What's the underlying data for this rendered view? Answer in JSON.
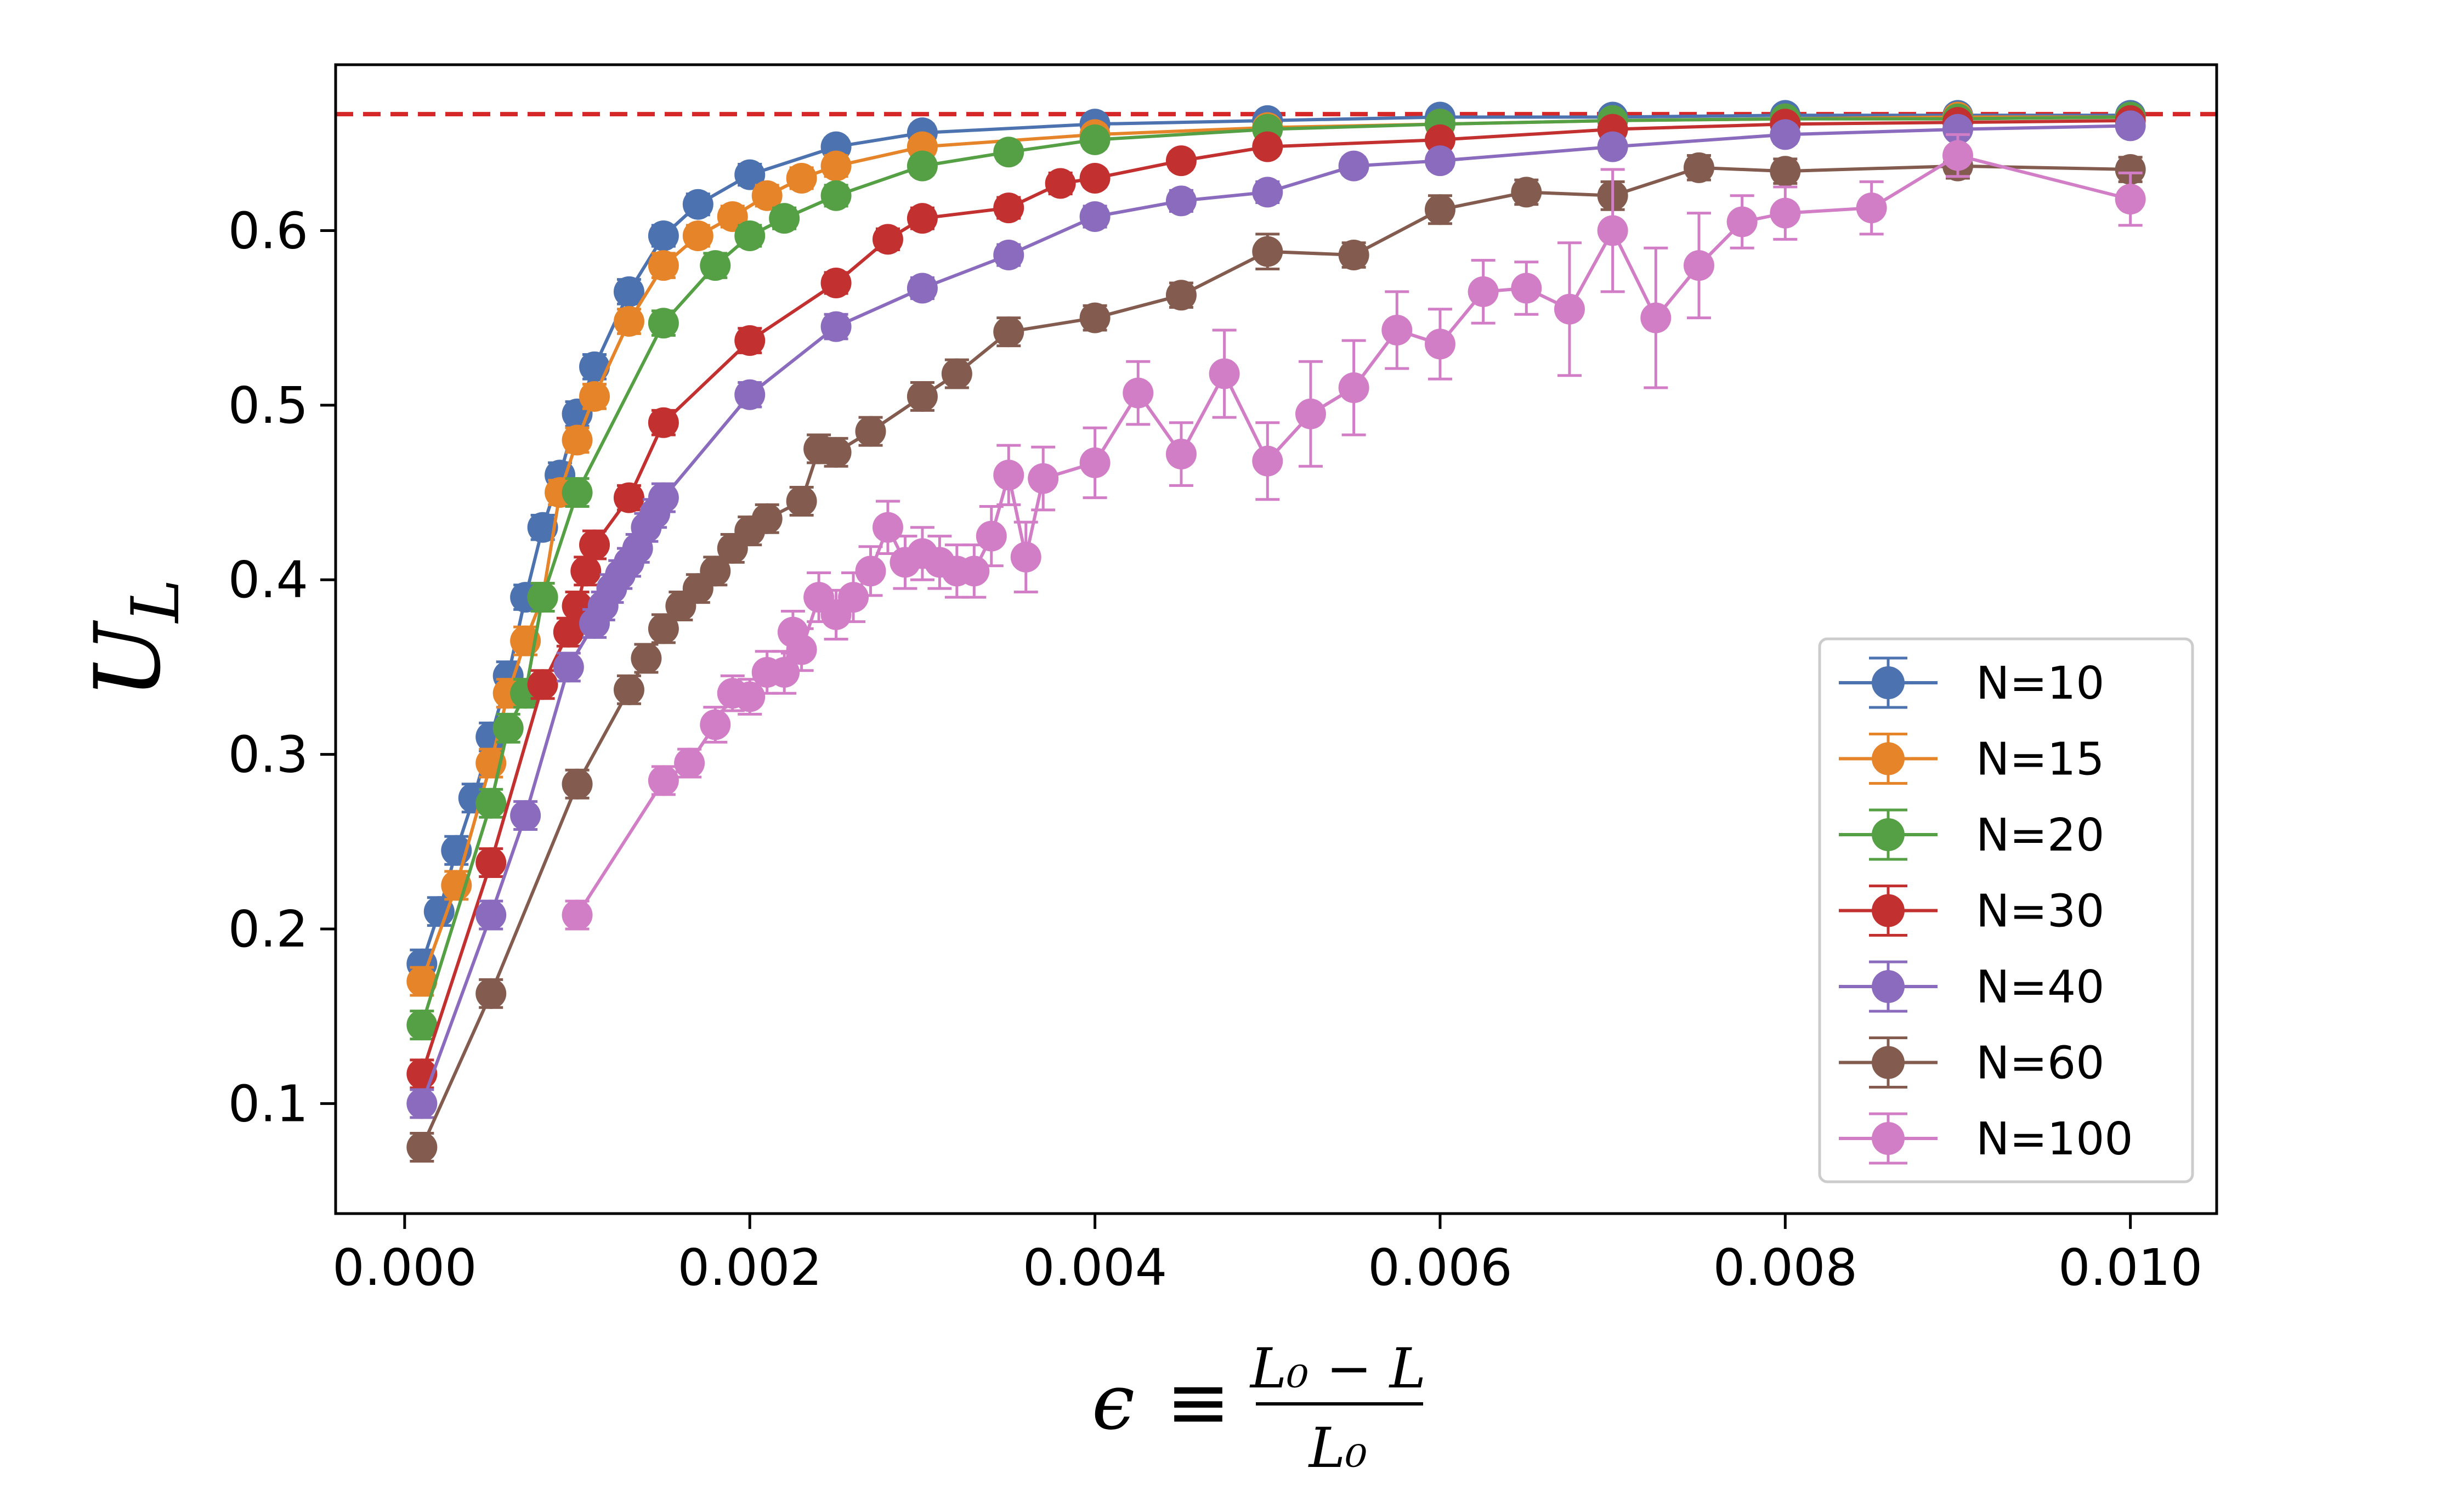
{
  "chart_data": {
    "type": "line",
    "title": "",
    "xlabel": "ε ≡ (L₀ − L) / L₀",
    "xlabel_parts": {
      "symbol": "ϵ",
      "equiv": "≡",
      "numerator": "L₀ − L",
      "denominator": "L₀"
    },
    "ylabel": "U_L",
    "ylabel_parts": {
      "base": "U",
      "sub": "L"
    },
    "xlim": [
      -0.0004,
      0.0105
    ],
    "ylim": [
      0.037,
      0.695
    ],
    "xticks": [
      0.0,
      0.002,
      0.004,
      0.006,
      0.008,
      0.01
    ],
    "xtick_labels": [
      "0.000",
      "0.002",
      "0.004",
      "0.006",
      "0.008",
      "0.010"
    ],
    "yticks": [
      0.1,
      0.2,
      0.3,
      0.4,
      0.5,
      0.6
    ],
    "ytick_labels": [
      "0.1",
      "0.2",
      "0.3",
      "0.4",
      "0.5",
      "0.6"
    ],
    "reference_line": {
      "y": 0.6667,
      "style": "dashed",
      "color": "#d62728"
    },
    "legend_position": "lower-right",
    "grid": false,
    "series": [
      {
        "name": "N=10",
        "color": "#4c72b0",
        "x": [
          0.0001,
          0.0002,
          0.0003,
          0.0004,
          0.0005,
          0.0006,
          0.0007,
          0.0008,
          0.0009,
          0.001,
          0.0011,
          0.0013,
          0.0015,
          0.0017,
          0.002,
          0.0025,
          0.003,
          0.004,
          0.005,
          0.006,
          0.007,
          0.008,
          0.009,
          0.01
        ],
        "y": [
          0.18,
          0.21,
          0.245,
          0.275,
          0.31,
          0.345,
          0.39,
          0.43,
          0.46,
          0.495,
          0.522,
          0.565,
          0.597,
          0.615,
          0.632,
          0.648,
          0.656,
          0.661,
          0.663,
          0.665,
          0.665,
          0.666,
          0.666,
          0.666
        ],
        "err": [
          0.008,
          0.008,
          0.008,
          0.008,
          0.008,
          0.008,
          0.007,
          0.007,
          0.007,
          0.007,
          0.007,
          0.007,
          0.006,
          0.006,
          0.006,
          0.005,
          0.005,
          0.004,
          0.004,
          0.004,
          0.004,
          0.004,
          0.004,
          0.004
        ]
      },
      {
        "name": "N=15",
        "color": "#e6842a",
        "x": [
          0.0001,
          0.0003,
          0.0005,
          0.0006,
          0.0007,
          0.0008,
          0.0009,
          0.001,
          0.0011,
          0.0013,
          0.0015,
          0.0017,
          0.0019,
          0.0021,
          0.0023,
          0.0025,
          0.003,
          0.004,
          0.005,
          0.006,
          0.007,
          0.008,
          0.009,
          0.01
        ],
        "y": [
          0.17,
          0.225,
          0.295,
          0.335,
          0.365,
          0.39,
          0.45,
          0.48,
          0.505,
          0.548,
          0.58,
          0.597,
          0.608,
          0.62,
          0.63,
          0.637,
          0.648,
          0.655,
          0.659,
          0.661,
          0.663,
          0.664,
          0.665,
          0.665
        ],
        "err": [
          0.008,
          0.008,
          0.008,
          0.008,
          0.008,
          0.008,
          0.007,
          0.007,
          0.007,
          0.007,
          0.007,
          0.006,
          0.006,
          0.006,
          0.006,
          0.006,
          0.005,
          0.005,
          0.004,
          0.004,
          0.004,
          0.004,
          0.004,
          0.004
        ]
      },
      {
        "name": "N=20",
        "color": "#55a044",
        "x": [
          0.0001,
          0.0005,
          0.0006,
          0.0007,
          0.0008,
          0.001,
          0.0015,
          0.0018,
          0.002,
          0.0022,
          0.0025,
          0.003,
          0.0035,
          0.004,
          0.005,
          0.006,
          0.007,
          0.008,
          0.009,
          0.01
        ],
        "y": [
          0.145,
          0.272,
          0.315,
          0.335,
          0.39,
          0.45,
          0.547,
          0.58,
          0.597,
          0.607,
          0.62,
          0.637,
          0.645,
          0.652,
          0.658,
          0.661,
          0.663,
          0.664,
          0.664,
          0.665
        ],
        "err": [
          0.008,
          0.008,
          0.008,
          0.008,
          0.008,
          0.008,
          0.007,
          0.007,
          0.006,
          0.006,
          0.006,
          0.005,
          0.005,
          0.005,
          0.004,
          0.004,
          0.004,
          0.004,
          0.004,
          0.004
        ]
      },
      {
        "name": "N=30",
        "color": "#c33030",
        "x": [
          0.0001,
          0.0005,
          0.0008,
          0.00095,
          0.001,
          0.00105,
          0.0011,
          0.0013,
          0.0015,
          0.002,
          0.0025,
          0.0028,
          0.003,
          0.0035,
          0.0038,
          0.004,
          0.0045,
          0.005,
          0.006,
          0.007,
          0.008,
          0.009,
          0.01
        ],
        "y": [
          0.117,
          0.238,
          0.34,
          0.37,
          0.385,
          0.405,
          0.42,
          0.447,
          0.49,
          0.537,
          0.57,
          0.595,
          0.607,
          0.613,
          0.627,
          0.63,
          0.64,
          0.648,
          0.652,
          0.658,
          0.661,
          0.662,
          0.663
        ],
        "err": [
          0.008,
          0.008,
          0.008,
          0.008,
          0.008,
          0.008,
          0.008,
          0.007,
          0.007,
          0.007,
          0.006,
          0.006,
          0.006,
          0.006,
          0.006,
          0.005,
          0.005,
          0.005,
          0.004,
          0.004,
          0.004,
          0.004,
          0.004
        ]
      },
      {
        "name": "N=40",
        "color": "#8a6bbe",
        "x": [
          0.0001,
          0.0005,
          0.0007,
          0.00095,
          0.0011,
          0.00115,
          0.0012,
          0.00125,
          0.0013,
          0.00135,
          0.0014,
          0.00145,
          0.0015,
          0.002,
          0.0025,
          0.003,
          0.0035,
          0.004,
          0.0045,
          0.005,
          0.0055,
          0.006,
          0.007,
          0.008,
          0.009,
          0.01
        ],
        "y": [
          0.1,
          0.208,
          0.265,
          0.35,
          0.375,
          0.385,
          0.395,
          0.403,
          0.41,
          0.418,
          0.43,
          0.438,
          0.447,
          0.506,
          0.545,
          0.567,
          0.586,
          0.608,
          0.617,
          0.622,
          0.637,
          0.64,
          0.648,
          0.655,
          0.658,
          0.66
        ],
        "err": [
          0.008,
          0.008,
          0.008,
          0.008,
          0.008,
          0.008,
          0.008,
          0.008,
          0.008,
          0.008,
          0.008,
          0.008,
          0.008,
          0.007,
          0.007,
          0.006,
          0.006,
          0.006,
          0.006,
          0.006,
          0.005,
          0.005,
          0.005,
          0.005,
          0.004,
          0.004
        ]
      },
      {
        "name": "N=60",
        "color": "#835b4f",
        "x": [
          0.0001,
          0.0005,
          0.001,
          0.0013,
          0.0014,
          0.0015,
          0.0016,
          0.0017,
          0.0018,
          0.0019,
          0.002,
          0.0021,
          0.0023,
          0.0024,
          0.0025,
          0.0027,
          0.003,
          0.0032,
          0.0035,
          0.004,
          0.0045,
          0.005,
          0.0055,
          0.006,
          0.0065,
          0.007,
          0.0075,
          0.008,
          0.009,
          0.01
        ],
        "y": [
          0.075,
          0.163,
          0.283,
          0.337,
          0.355,
          0.372,
          0.385,
          0.395,
          0.405,
          0.418,
          0.428,
          0.435,
          0.445,
          0.475,
          0.473,
          0.485,
          0.505,
          0.518,
          0.542,
          0.55,
          0.563,
          0.588,
          0.586,
          0.612,
          0.622,
          0.62,
          0.636,
          0.634,
          0.637,
          0.635
        ],
        "err": [
          0.008,
          0.008,
          0.008,
          0.008,
          0.008,
          0.008,
          0.008,
          0.008,
          0.008,
          0.008,
          0.008,
          0.008,
          0.008,
          0.008,
          0.008,
          0.008,
          0.008,
          0.008,
          0.008,
          0.007,
          0.007,
          0.01,
          0.007,
          0.008,
          0.007,
          0.008,
          0.007,
          0.007,
          0.007,
          0.007
        ]
      },
      {
        "name": "N=100",
        "color": "#d27ec7",
        "x": [
          0.001,
          0.0015,
          0.00165,
          0.0018,
          0.0019,
          0.002,
          0.0021,
          0.0022,
          0.00225,
          0.0023,
          0.0024,
          0.0025,
          0.0026,
          0.0027,
          0.0028,
          0.0029,
          0.003,
          0.0031,
          0.0032,
          0.0033,
          0.0034,
          0.0035,
          0.0036,
          0.0037,
          0.004,
          0.00425,
          0.0045,
          0.00475,
          0.005,
          0.00525,
          0.0055,
          0.00575,
          0.006,
          0.00625,
          0.0065,
          0.00675,
          0.007,
          0.00725,
          0.0075,
          0.00775,
          0.008,
          0.0085,
          0.009,
          0.01
        ],
        "y": [
          0.208,
          0.285,
          0.295,
          0.317,
          0.335,
          0.333,
          0.347,
          0.347,
          0.37,
          0.36,
          0.39,
          0.38,
          0.39,
          0.405,
          0.43,
          0.41,
          0.415,
          0.41,
          0.405,
          0.405,
          0.425,
          0.46,
          0.413,
          0.458,
          0.467,
          0.507,
          0.472,
          0.518,
          0.468,
          0.495,
          0.51,
          0.543,
          0.535,
          0.565,
          0.567,
          0.555,
          0.6,
          0.55,
          0.58,
          0.605,
          0.61,
          0.613,
          0.643,
          0.618
        ],
        "err": [
          0.008,
          0.008,
          0.008,
          0.01,
          0.01,
          0.01,
          0.012,
          0.012,
          0.012,
          0.012,
          0.014,
          0.014,
          0.014,
          0.014,
          0.015,
          0.015,
          0.015,
          0.015,
          0.015,
          0.015,
          0.017,
          0.017,
          0.02,
          0.018,
          0.02,
          0.018,
          0.018,
          0.025,
          0.022,
          0.03,
          0.027,
          0.022,
          0.02,
          0.018,
          0.015,
          0.038,
          0.035,
          0.04,
          0.03,
          0.015,
          0.015,
          0.015,
          0.012,
          0.015
        ]
      }
    ]
  }
}
